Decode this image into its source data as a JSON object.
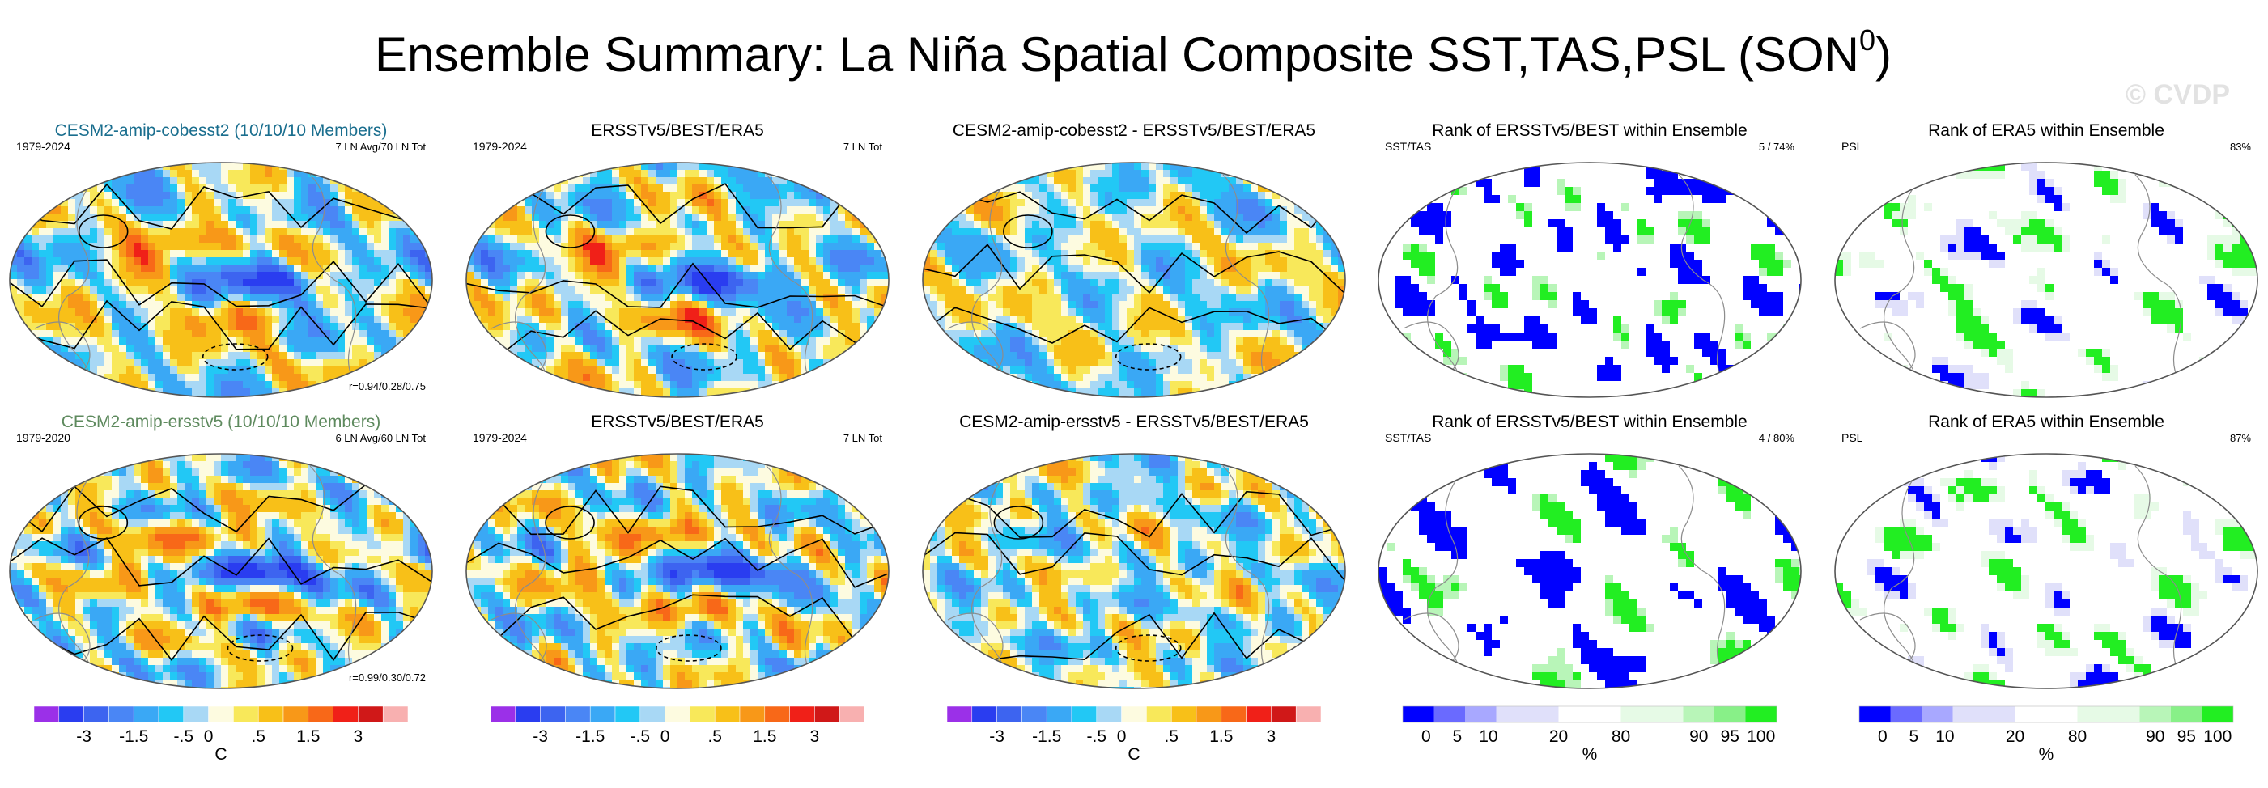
{
  "chart_data": {
    "type": "heatmap",
    "title": "Ensemble Summary: La Niña Spatial Composite SST,TAS,PSL (SON",
    "title_superscript": "0",
    "watermark": "© CVDP",
    "panels": [
      {
        "row": 0,
        "col": 0,
        "kind": "anom",
        "seed": 11,
        "title": "CESM2-amip-cobesst2 (10/10/10 Members)",
        "title_color": "#1a6e8e",
        "left_label": "1979-2024",
        "right_label": "7 LN Avg/70 LN Tot",
        "bottom_right": "r=0.94/0.28/0.75"
      },
      {
        "row": 0,
        "col": 1,
        "kind": "anom",
        "seed": 23,
        "title": "ERSSTv5/BEST/ERA5",
        "title_color": "#000000",
        "left_label": "1979-2024",
        "right_label": "7 LN Tot",
        "bottom_right": ""
      },
      {
        "row": 0,
        "col": 2,
        "kind": "diff",
        "seed": 37,
        "title": "CESM2-amip-cobesst2 - ERSSTv5/BEST/ERA5",
        "title_color": "#000000",
        "left_label": "",
        "right_label": "",
        "bottom_right": ""
      },
      {
        "row": 0,
        "col": 3,
        "kind": "rank",
        "seed": 41,
        "title": "Rank of ERSSTv5/BEST within Ensemble",
        "title_color": "#000000",
        "left_label": "SST/TAS",
        "right_label": "5 /  74%",
        "bottom_right": ""
      },
      {
        "row": 0,
        "col": 4,
        "kind": "rankpsl",
        "seed": 53,
        "title": "Rank of ERA5 within Ensemble",
        "title_color": "#000000",
        "left_label": "PSL",
        "right_label": "83%",
        "bottom_right": ""
      },
      {
        "row": 1,
        "col": 0,
        "kind": "anom",
        "seed": 61,
        "title": "CESM2-amip-ersstv5 (10/10/10 Members)",
        "title_color": "#5e8a5e",
        "left_label": "1979-2020",
        "right_label": "6 LN Avg/60 LN Tot",
        "bottom_right": "r=0.99/0.30/0.72"
      },
      {
        "row": 1,
        "col": 1,
        "kind": "anom",
        "seed": 73,
        "title": "ERSSTv5/BEST/ERA5",
        "title_color": "#000000",
        "left_label": "1979-2024",
        "right_label": "7 LN Tot",
        "bottom_right": ""
      },
      {
        "row": 1,
        "col": 2,
        "kind": "diff",
        "seed": 89,
        "title": "CESM2-amip-ersstv5 - ERSSTv5/BEST/ERA5",
        "title_color": "#000000",
        "left_label": "",
        "right_label": "",
        "bottom_right": ""
      },
      {
        "row": 1,
        "col": 3,
        "kind": "rank",
        "seed": 97,
        "title": "Rank of ERSSTv5/BEST within Ensemble",
        "title_color": "#000000",
        "left_label": "SST/TAS",
        "right_label": "4 /  80%",
        "bottom_right": ""
      },
      {
        "row": 1,
        "col": 4,
        "kind": "rankpsl",
        "seed": 103,
        "title": "Rank of ERA5 within Ensemble",
        "title_color": "#000000",
        "left_label": "PSL",
        "right_label": "87%",
        "bottom_right": ""
      }
    ],
    "colorbars": [
      {
        "col": 0,
        "kind": "anom",
        "labels": [
          "-3",
          "-1.5",
          "-.5",
          "0",
          ".5",
          "1.5",
          "3"
        ],
        "unit": "C"
      },
      {
        "col": 1,
        "kind": "anom",
        "labels": [
          "-3",
          "-1.5",
          "-.5",
          "0",
          ".5",
          "1.5",
          "3"
        ],
        "unit": ""
      },
      {
        "col": 2,
        "kind": "anom",
        "labels": [
          "-3",
          "-1.5",
          "-.5",
          "0",
          ".5",
          "1.5",
          "3"
        ],
        "unit": "C"
      },
      {
        "col": 3,
        "kind": "rank",
        "labels": [
          "0",
          "5",
          "10",
          "20",
          "80",
          "90",
          "95",
          "100"
        ],
        "unit": "%"
      },
      {
        "col": 4,
        "kind": "rank",
        "labels": [
          "0",
          "5",
          "10",
          "20",
          "80",
          "90",
          "95",
          "100"
        ],
        "unit": "%"
      }
    ],
    "anom_colors": [
      "#9b30e8",
      "#2a3df0",
      "#3d64f0",
      "#4a86f5",
      "#3aa8f5",
      "#22c8f5",
      "#a8d8f5",
      "#fdfbe0",
      "#f8e85a",
      "#f8c018",
      "#f89818",
      "#f86818",
      "#f02018",
      "#d01818",
      "#f8b0b0"
    ],
    "rank_colors": [
      "#0000ff",
      "#6a6aff",
      "#a8a8ff",
      "#e0e0fa",
      "#ffffff",
      "#e6fae6",
      "#b8f5b8",
      "#88f088",
      "#22ee22"
    ],
    "rank_midline": "#ffffff"
  }
}
